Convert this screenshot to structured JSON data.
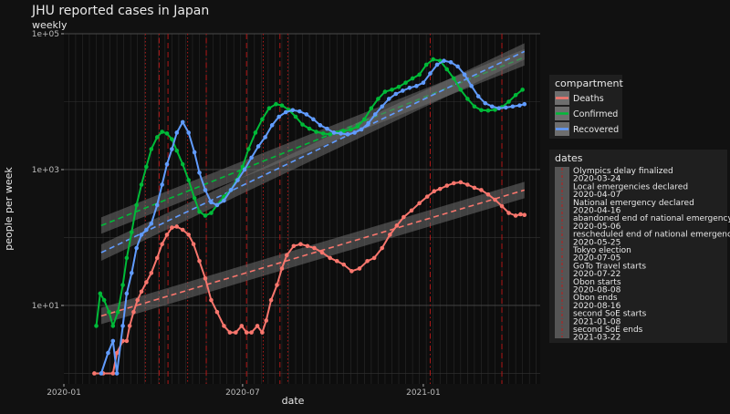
{
  "chart_data": {
    "type": "line",
    "title": "JHU reported cases in Japan",
    "subtitle": "weekly",
    "xlabel": "date",
    "ylabel": "people per week",
    "x_scale": "date",
    "y_scale": "log10",
    "xlim": [
      "2020-01-01",
      "2021-04-30"
    ],
    "ylim": [
      0.7,
      100000
    ],
    "x_ticks": [
      {
        "date": "2020-01-01",
        "label": "2020-01"
      },
      {
        "date": "2020-07-01",
        "label": "2020-07"
      },
      {
        "date": "2021-01-01",
        "label": "2021-01"
      }
    ],
    "y_ticks": [
      {
        "value": 10,
        "label": "1e+01"
      },
      {
        "value": 1000,
        "label": "1e+03"
      },
      {
        "value": 100000,
        "label": "1e+05"
      }
    ],
    "grid": true,
    "legend_position": "right",
    "legend_title": "compartment",
    "series": [
      {
        "name": "Deaths",
        "color": "#f8766d",
        "points": [
          [
            "2020-02-01",
            1
          ],
          [
            "2020-02-10",
            1
          ],
          [
            "2020-02-20",
            1
          ],
          [
            "2020-02-24",
            2
          ],
          [
            "2020-03-01",
            3
          ],
          [
            "2020-03-05",
            3
          ],
          [
            "2020-03-08",
            5
          ],
          [
            "2020-03-12",
            8
          ],
          [
            "2020-03-16",
            12
          ],
          [
            "2020-03-20",
            16
          ],
          [
            "2020-03-25",
            22
          ],
          [
            "2020-03-30",
            30
          ],
          [
            "2020-04-05",
            50
          ],
          [
            "2020-04-10",
            80
          ],
          [
            "2020-04-15",
            110
          ],
          [
            "2020-04-20",
            140
          ],
          [
            "2020-04-25",
            145
          ],
          [
            "2020-05-01",
            130
          ],
          [
            "2020-05-07",
            110
          ],
          [
            "2020-05-12",
            80
          ],
          [
            "2020-05-18",
            45
          ],
          [
            "2020-05-24",
            25
          ],
          [
            "2020-05-30",
            12
          ],
          [
            "2020-06-05",
            8
          ],
          [
            "2020-06-12",
            5
          ],
          [
            "2020-06-18",
            4
          ],
          [
            "2020-06-24",
            4
          ],
          [
            "2020-06-30",
            5
          ],
          [
            "2020-07-05",
            4
          ],
          [
            "2020-07-10",
            4
          ],
          [
            "2020-07-16",
            5
          ],
          [
            "2020-07-21",
            4
          ],
          [
            "2020-07-25",
            6
          ],
          [
            "2020-07-30",
            12
          ],
          [
            "2020-08-05",
            20
          ],
          [
            "2020-08-10",
            35
          ],
          [
            "2020-08-15",
            55
          ],
          [
            "2020-08-22",
            75
          ],
          [
            "2020-08-29",
            80
          ],
          [
            "2020-09-05",
            75
          ],
          [
            "2020-09-12",
            70
          ],
          [
            "2020-09-20",
            60
          ],
          [
            "2020-09-28",
            50
          ],
          [
            "2020-10-05",
            45
          ],
          [
            "2020-10-12",
            40
          ],
          [
            "2020-10-20",
            32
          ],
          [
            "2020-10-28",
            35
          ],
          [
            "2020-11-05",
            45
          ],
          [
            "2020-11-12",
            50
          ],
          [
            "2020-11-20",
            70
          ],
          [
            "2020-11-28",
            110
          ],
          [
            "2020-12-05",
            150
          ],
          [
            "2020-12-12",
            200
          ],
          [
            "2020-12-20",
            250
          ],
          [
            "2020-12-28",
            320
          ],
          [
            "2021-01-05",
            400
          ],
          [
            "2021-01-12",
            480
          ],
          [
            "2021-01-18",
            520
          ],
          [
            "2021-01-25",
            580
          ],
          [
            "2021-02-01",
            630
          ],
          [
            "2021-02-08",
            650
          ],
          [
            "2021-02-15",
            600
          ],
          [
            "2021-02-22",
            540
          ],
          [
            "2021-03-01",
            500
          ],
          [
            "2021-03-08",
            430
          ],
          [
            "2021-03-15",
            360
          ],
          [
            "2021-03-22",
            290
          ],
          [
            "2021-03-29",
            230
          ],
          [
            "2021-04-05",
            210
          ],
          [
            "2021-04-10",
            220
          ],
          [
            "2021-04-14",
            215
          ]
        ]
      },
      {
        "name": "Confirmed",
        "color": "#00ba38",
        "points": [
          [
            "2020-02-03",
            5
          ],
          [
            "2020-02-07",
            15
          ],
          [
            "2020-02-11",
            12
          ],
          [
            "2020-02-16",
            8
          ],
          [
            "2020-02-20",
            5
          ],
          [
            "2020-02-25",
            8
          ],
          [
            "2020-03-01",
            20
          ],
          [
            "2020-03-05",
            50
          ],
          [
            "2020-03-10",
            120
          ],
          [
            "2020-03-15",
            300
          ],
          [
            "2020-03-20",
            600
          ],
          [
            "2020-03-25",
            1100
          ],
          [
            "2020-03-30",
            2000
          ],
          [
            "2020-04-05",
            3000
          ],
          [
            "2020-04-10",
            3600
          ],
          [
            "2020-04-15",
            3400
          ],
          [
            "2020-04-20",
            2800
          ],
          [
            "2020-04-25",
            1900
          ],
          [
            "2020-05-01",
            1200
          ],
          [
            "2020-05-07",
            700
          ],
          [
            "2020-05-13",
            380
          ],
          [
            "2020-05-18",
            240
          ],
          [
            "2020-05-24",
            210
          ],
          [
            "2020-05-30",
            230
          ],
          [
            "2020-06-05",
            300
          ],
          [
            "2020-06-12",
            400
          ],
          [
            "2020-06-19",
            500
          ],
          [
            "2020-06-25",
            700
          ],
          [
            "2020-07-01",
            1100
          ],
          [
            "2020-07-07",
            2000
          ],
          [
            "2020-07-14",
            3500
          ],
          [
            "2020-07-21",
            5500
          ],
          [
            "2020-07-28",
            8000
          ],
          [
            "2020-08-04",
            9200
          ],
          [
            "2020-08-10",
            8800
          ],
          [
            "2020-08-17",
            7600
          ],
          [
            "2020-08-24",
            6000
          ],
          [
            "2020-08-31",
            4600
          ],
          [
            "2020-09-07",
            4000
          ],
          [
            "2020-09-14",
            3600
          ],
          [
            "2020-09-21",
            3400
          ],
          [
            "2020-09-28",
            3300
          ],
          [
            "2020-10-05",
            3500
          ],
          [
            "2020-10-12",
            3700
          ],
          [
            "2020-10-19",
            3900
          ],
          [
            "2020-10-26",
            4300
          ],
          [
            "2020-11-02",
            5500
          ],
          [
            "2020-11-09",
            8000
          ],
          [
            "2020-11-16",
            11000
          ],
          [
            "2020-11-23",
            14000
          ],
          [
            "2020-11-30",
            15000
          ],
          [
            "2020-12-07",
            16500
          ],
          [
            "2020-12-14",
            19000
          ],
          [
            "2020-12-21",
            22000
          ],
          [
            "2020-12-28",
            25000
          ],
          [
            "2021-01-04",
            35000
          ],
          [
            "2021-01-11",
            42000
          ],
          [
            "2021-01-18",
            40000
          ],
          [
            "2021-01-25",
            30000
          ],
          [
            "2021-02-01",
            22000
          ],
          [
            "2021-02-08",
            15000
          ],
          [
            "2021-02-15",
            11000
          ],
          [
            "2021-02-22",
            8500
          ],
          [
            "2021-03-01",
            7500
          ],
          [
            "2021-03-08",
            7400
          ],
          [
            "2021-03-15",
            7600
          ],
          [
            "2021-03-22",
            8300
          ],
          [
            "2021-03-29",
            10000
          ],
          [
            "2021-04-05",
            12500
          ],
          [
            "2021-04-12",
            15000
          ]
        ]
      },
      {
        "name": "Recovered",
        "color": "#619cff",
        "points": [
          [
            "2020-02-08",
            1
          ],
          [
            "2020-02-15",
            2
          ],
          [
            "2020-02-20",
            3
          ],
          [
            "2020-02-24",
            1
          ],
          [
            "2020-03-01",
            5
          ],
          [
            "2020-03-05",
            15
          ],
          [
            "2020-03-10",
            30
          ],
          [
            "2020-03-15",
            70
          ],
          [
            "2020-03-20",
            110
          ],
          [
            "2020-03-25",
            130
          ],
          [
            "2020-03-30",
            160
          ],
          [
            "2020-04-05",
            300
          ],
          [
            "2020-04-10",
            600
          ],
          [
            "2020-04-15",
            1200
          ],
          [
            "2020-04-20",
            2000
          ],
          [
            "2020-04-25",
            3500
          ],
          [
            "2020-05-01",
            5000
          ],
          [
            "2020-05-07",
            3500
          ],
          [
            "2020-05-13",
            1800
          ],
          [
            "2020-05-18",
            900
          ],
          [
            "2020-05-24",
            500
          ],
          [
            "2020-05-30",
            330
          ],
          [
            "2020-06-05",
            300
          ],
          [
            "2020-06-12",
            350
          ],
          [
            "2020-06-19",
            500
          ],
          [
            "2020-06-26",
            700
          ],
          [
            "2020-07-03",
            1000
          ],
          [
            "2020-07-10",
            1500
          ],
          [
            "2020-07-17",
            2200
          ],
          [
            "2020-07-24",
            3000
          ],
          [
            "2020-07-31",
            4500
          ],
          [
            "2020-08-07",
            6000
          ],
          [
            "2020-08-14",
            7000
          ],
          [
            "2020-08-21",
            7500
          ],
          [
            "2020-08-28",
            7200
          ],
          [
            "2020-09-04",
            6500
          ],
          [
            "2020-09-11",
            5500
          ],
          [
            "2020-09-18",
            4500
          ],
          [
            "2020-09-25",
            4000
          ],
          [
            "2020-10-02",
            3500
          ],
          [
            "2020-10-09",
            3400
          ],
          [
            "2020-10-16",
            3300
          ],
          [
            "2020-10-23",
            3500
          ],
          [
            "2020-10-30",
            3900
          ],
          [
            "2020-11-06",
            4800
          ],
          [
            "2020-11-13",
            6500
          ],
          [
            "2020-11-20",
            8500
          ],
          [
            "2020-11-27",
            11000
          ],
          [
            "2020-12-04",
            13000
          ],
          [
            "2020-12-11",
            14500
          ],
          [
            "2020-12-18",
            16000
          ],
          [
            "2020-12-25",
            17000
          ],
          [
            "2021-01-01",
            19000
          ],
          [
            "2021-01-08",
            26000
          ],
          [
            "2021-01-15",
            35000
          ],
          [
            "2021-01-22",
            40000
          ],
          [
            "2021-01-29",
            38000
          ],
          [
            "2021-02-05",
            33000
          ],
          [
            "2021-02-12",
            25000
          ],
          [
            "2021-02-19",
            17000
          ],
          [
            "2021-02-26",
            12000
          ],
          [
            "2021-03-05",
            9500
          ],
          [
            "2021-03-12",
            8500
          ],
          [
            "2021-03-19",
            8000
          ],
          [
            "2021-03-26",
            8200
          ],
          [
            "2021-04-02",
            8500
          ],
          [
            "2021-04-09",
            8800
          ],
          [
            "2021-04-14",
            9200
          ]
        ]
      }
    ],
    "trend_lines": [
      {
        "series": "Deaths",
        "color": "#f8766d",
        "from": [
          "2020-02-08",
          7
        ],
        "to": [
          "2021-04-14",
          500
        ]
      },
      {
        "series": "Confirmed",
        "color": "#00ba38",
        "from": [
          "2020-02-08",
          150
        ],
        "to": [
          "2021-04-14",
          45000
        ]
      },
      {
        "series": "Recovered",
        "color": "#619cff",
        "from": [
          "2020-02-08",
          60
        ],
        "to": [
          "2021-04-14",
          55000
        ]
      }
    ],
    "date_events": {
      "title": "dates",
      "items": [
        {
          "label": "Olympics delay finalized",
          "date": "2020-03-24",
          "linetype": "dotted"
        },
        {
          "label": "Local emergencies declared",
          "date": "2020-04-07",
          "linetype": "dotdash"
        },
        {
          "label": "National emergency declared",
          "date": "2020-04-16",
          "linetype": "dashed"
        },
        {
          "label": "abandoned end of national emergency",
          "date": "2020-05-06",
          "linetype": "dotted"
        },
        {
          "label": "rescheduled end of national emergency",
          "date": "2020-05-25",
          "linetype": "dotdash"
        },
        {
          "label": "Tokyo election",
          "date": "2020-07-05",
          "linetype": "dashed"
        },
        {
          "label": "GoTo Travel starts",
          "date": "2020-07-22",
          "linetype": "dotted"
        },
        {
          "label": "Obon starts",
          "date": "2020-08-08",
          "linetype": "dashed"
        },
        {
          "label": "Obon ends",
          "date": "2020-08-16",
          "linetype": "dotted"
        },
        {
          "label": "second SoE starts",
          "date": "2021-01-08",
          "linetype": "dotdash"
        },
        {
          "label": "second SoE ends",
          "date": "2021-03-22",
          "linetype": "dashed"
        }
      ]
    }
  }
}
